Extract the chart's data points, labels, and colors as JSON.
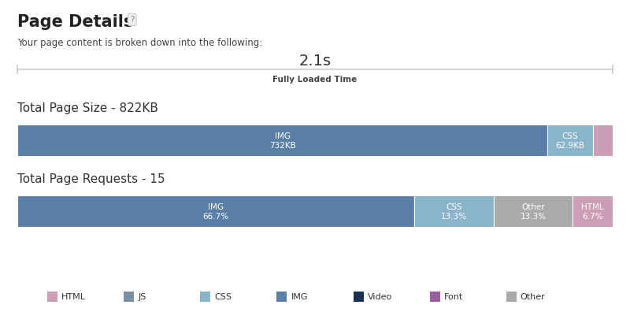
{
  "title": "Page Details",
  "subtitle": "Your page content is broken down into the following:",
  "loaded_time": "2.1s",
  "loaded_label": "Fully Loaded Time",
  "size_title": "Total Page Size - 822KB",
  "requests_title": "Total Page Requests - 15",
  "size_bars": [
    {
      "label": "IMG",
      "sublabel": "732KB",
      "value": 732,
      "color": "#5a7fa6"
    },
    {
      "label": "CSS",
      "sublabel": "62.9KB",
      "value": 62.9,
      "color": "#8ab4c9"
    },
    {
      "label": "",
      "sublabel": "",
      "value": 27.1,
      "color": "#cc9db5"
    }
  ],
  "request_bars": [
    {
      "label": "IMG",
      "sublabel": "66.7%",
      "value": 66.7,
      "color": "#5a7fa6"
    },
    {
      "label": "CSS",
      "sublabel": "13.3%",
      "value": 13.3,
      "color": "#8ab4c9"
    },
    {
      "label": "Other",
      "sublabel": "13.3%",
      "value": 13.3,
      "color": "#aaaaaa"
    },
    {
      "label": "HTML",
      "sublabel": "6.7%",
      "value": 6.7,
      "color": "#cc9db5"
    }
  ],
  "legend_items": [
    {
      "label": "HTML",
      "color": "#cc9db5"
    },
    {
      "label": "JS",
      "color": "#7a8fa6"
    },
    {
      "label": "CSS",
      "color": "#8ab4c9"
    },
    {
      "label": "IMG",
      "color": "#5a7fa6"
    },
    {
      "label": "Video",
      "color": "#1a3050"
    },
    {
      "label": "Font",
      "color": "#9b5fa0"
    },
    {
      "label": "Other",
      "color": "#aaaaaa"
    }
  ],
  "bg_color": "#ffffff",
  "question_mark_label": "?"
}
